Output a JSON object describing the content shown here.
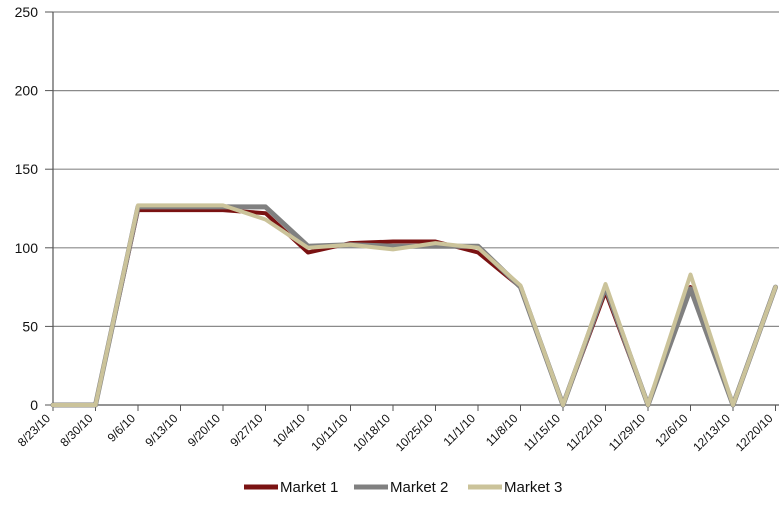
{
  "chart_data": {
    "type": "line",
    "title": "",
    "xlabel": "",
    "ylabel": "",
    "ylim": [
      0,
      250
    ],
    "yticks": [
      0,
      50,
      100,
      150,
      200,
      250
    ],
    "grid": true,
    "legend_position": "bottom",
    "categories": [
      "8/23/10",
      "8/30/10",
      "9/6/10",
      "9/13/10",
      "9/20/10",
      "9/27/10",
      "10/4/10",
      "10/11/10",
      "10/18/10",
      "10/25/10",
      "11/1/10",
      "11/8/10",
      "11/15/10",
      "11/22/10",
      "11/29/10",
      "12/6/10",
      "12/13/10",
      "12/20/10"
    ],
    "series": [
      {
        "name": "Market 1",
        "color": "#7a1212",
        "values": [
          0,
          0,
          124,
          124,
          124,
          122,
          97,
          103,
          104,
          104,
          97,
          75,
          0,
          72,
          0,
          75,
          0,
          75
        ]
      },
      {
        "name": "Market 2",
        "color": "#808080",
        "values": [
          0,
          0,
          126,
          126,
          126,
          126,
          101,
          102,
          101,
          101,
          101,
          75,
          0,
          75,
          0,
          74,
          0,
          75
        ]
      },
      {
        "name": "Market 3",
        "color": "#cbc39a",
        "values": [
          0,
          0,
          127,
          127,
          127,
          118,
          100,
          102,
          99,
          103,
          100,
          76,
          0,
          77,
          0,
          83,
          0,
          75
        ]
      }
    ]
  }
}
